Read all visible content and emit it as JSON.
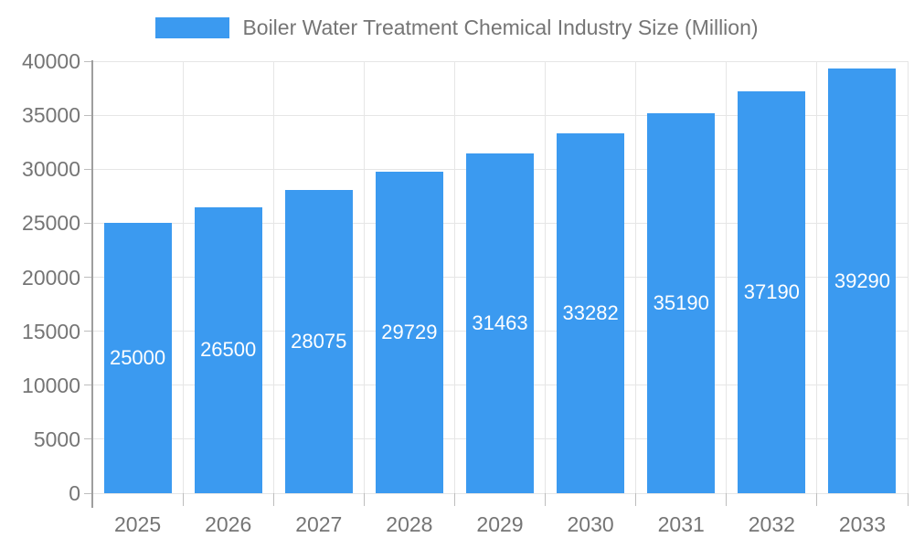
{
  "chart_data": {
    "type": "bar",
    "title": "Boiler Water Treatment Chemical Industry Size (Million)",
    "categories": [
      "2025",
      "2026",
      "2027",
      "2028",
      "2029",
      "2030",
      "2031",
      "2032",
      "2033"
    ],
    "values": [
      25000,
      26500,
      28075,
      29729,
      31463,
      33282,
      35190,
      37190,
      39290
    ],
    "xlabel": "",
    "ylabel": "",
    "ylim": [
      0,
      40000
    ],
    "ytick_step": 5000,
    "ytick_labels": [
      "0",
      "5000",
      "10000",
      "15000",
      "20000",
      "25000",
      "30000",
      "35000",
      "40000"
    ],
    "grid": true,
    "legend_position": "top",
    "colors": {
      "bar": "#3b9af0",
      "value_label": "#ffffff",
      "axis_text": "#757575",
      "gridline": "#e6e6e6",
      "axis_line": "#9e9e9e",
      "tick": "#bdbdbd"
    }
  }
}
